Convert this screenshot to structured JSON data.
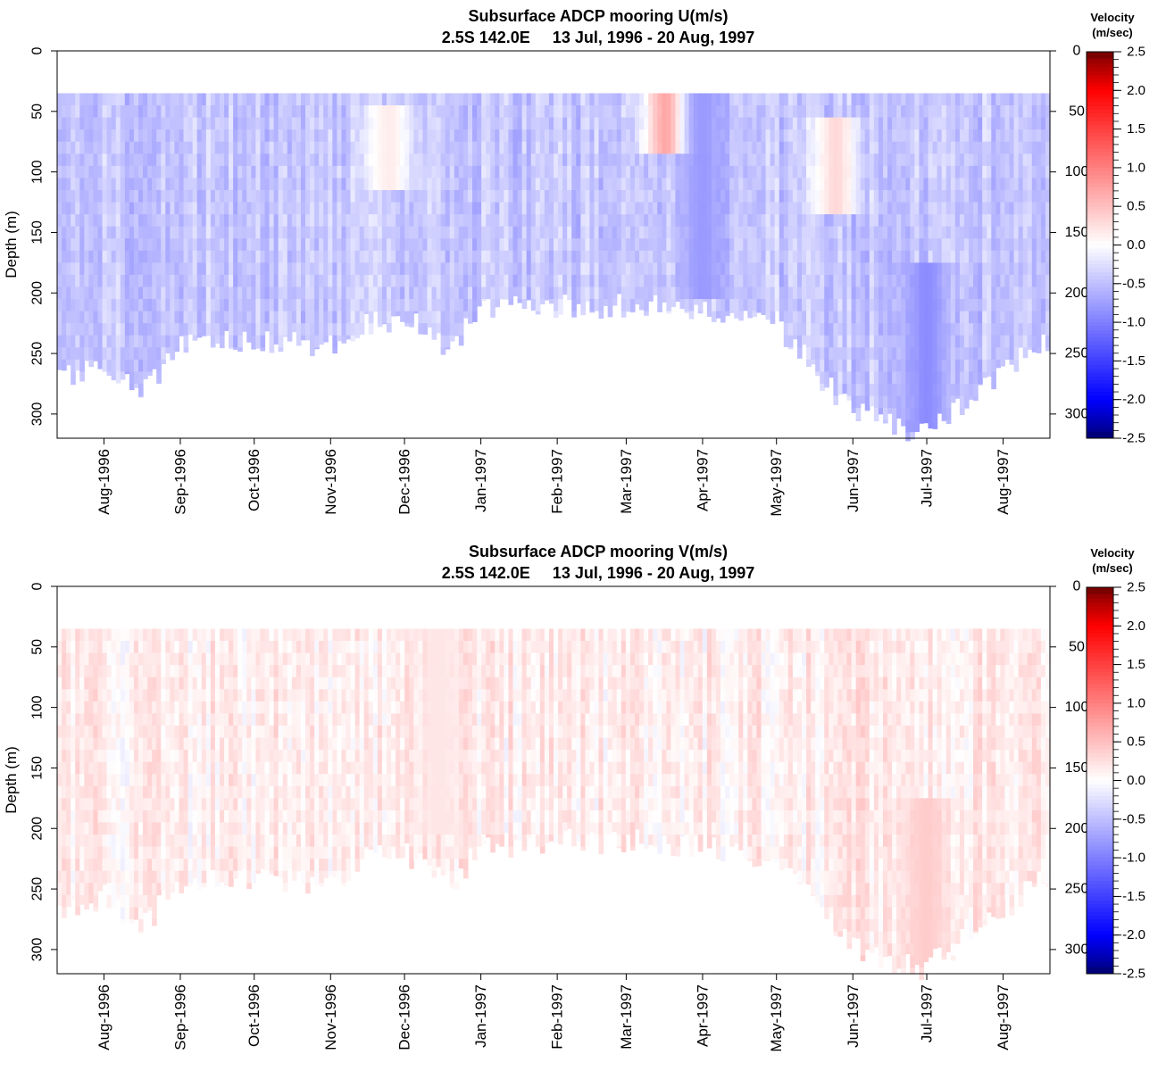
{
  "charts": [
    {
      "id": "u",
      "title": "Subsurface ADCP mooring U(m/s)",
      "subtitle": "2.5S 142.0E     13 Jul, 1996 - 20 Aug, 1997",
      "ylabel": "Depth (m)",
      "colorbar_title": [
        "Velocity",
        "(m/sec)"
      ]
    },
    {
      "id": "v",
      "title": "Subsurface ADCP mooring V(m/s)",
      "subtitle": "2.5S 142.0E     13 Jul, 1996 - 20 Aug, 1997",
      "ylabel": "Depth (m)",
      "colorbar_title": [
        "Velocity",
        "(m/sec)"
      ]
    }
  ],
  "chart_data": [
    {
      "type": "heatmap",
      "variable": "U",
      "title": "Subsurface ADCP mooring U(m/s)",
      "subtitle": "2.5S 142.0E     13 Jul, 1996 - 20 Aug, 1997",
      "ylabel": "Depth (m)",
      "ylim": [
        320,
        0
      ],
      "yticks": [
        0,
        50,
        100,
        150,
        200,
        250,
        300
      ],
      "xlim": [
        "1996-07-13",
        "1997-08-20"
      ],
      "xticks": [
        "1996-08-01",
        "1996-09-01",
        "1996-10-01",
        "1996-11-01",
        "1996-12-01",
        "1997-01-01",
        "1997-02-01",
        "1997-03-01",
        "1997-04-01",
        "1997-05-01",
        "1997-06-01",
        "1997-07-01",
        "1997-08-01"
      ],
      "xtick_labels": [
        "Aug-1996",
        "Sep-1996",
        "Oct-1996",
        "Nov-1996",
        "Dec-1996",
        "Jan-1997",
        "Feb-1997",
        "Mar-1997",
        "Apr-1997",
        "May-1997",
        "Jun-1997",
        "Jul-1997",
        "Aug-1997"
      ],
      "colorbar": {
        "title": "Velocity (m/sec)",
        "range": [
          -2.5,
          2.5
        ],
        "ticks": [
          2.5,
          2.0,
          1.5,
          1.0,
          0.5,
          0.0,
          -0.5,
          -1.0,
          -1.5,
          -2.0,
          -2.5
        ],
        "low_color": "#00007a",
        "mid_color": "#ffffff",
        "high_color": "#7a0000"
      },
      "data_top_depth": 35,
      "monthly_bottom_depth": [
        [
          "1996-07-13",
          275
        ],
        [
          "1996-08-01",
          255
        ],
        [
          "1996-08-15",
          285
        ],
        [
          "1996-09-01",
          245
        ],
        [
          "1996-10-01",
          240
        ],
        [
          "1996-11-01",
          245
        ],
        [
          "1996-11-15",
          225
        ],
        [
          "1996-12-01",
          220
        ],
        [
          "1996-12-20",
          245
        ],
        [
          "1997-01-01",
          215
        ],
        [
          "1997-02-01",
          210
        ],
        [
          "1997-03-01",
          210
        ],
        [
          "1997-04-01",
          215
        ],
        [
          "1997-05-01",
          225
        ],
        [
          "1997-06-01",
          300
        ],
        [
          "1997-07-01",
          315
        ],
        [
          "1997-08-01",
          265
        ],
        [
          "1997-08-20",
          240
        ]
      ],
      "features": [
        {
          "date": "1997-03-18",
          "depth_range": [
            35,
            75
          ],
          "value": 0.8
        },
        {
          "date": "1997-05-25",
          "depth_range": [
            60,
            130
          ],
          "value": 0.3
        },
        {
          "date": "1996-11-25",
          "depth_range": [
            50,
            110
          ],
          "value": 0.15
        },
        {
          "date": "1997-07-01",
          "depth_range": [
            180,
            310
          ],
          "value": -0.9
        },
        {
          "date": "1997-04-01",
          "depth_range": [
            35,
            200
          ],
          "value": -0.8
        }
      ],
      "typical_value": -0.45
    },
    {
      "type": "heatmap",
      "variable": "V",
      "title": "Subsurface ADCP mooring V(m/s)",
      "subtitle": "2.5S 142.0E     13 Jul, 1996 - 20 Aug, 1997",
      "ylabel": "Depth (m)",
      "ylim": [
        320,
        0
      ],
      "yticks": [
        0,
        50,
        100,
        150,
        200,
        250,
        300
      ],
      "xlim": [
        "1996-07-13",
        "1997-08-20"
      ],
      "xticks": [
        "1996-08-01",
        "1996-09-01",
        "1996-10-01",
        "1996-11-01",
        "1996-12-01",
        "1997-01-01",
        "1997-02-01",
        "1997-03-01",
        "1997-04-01",
        "1997-05-01",
        "1997-06-01",
        "1997-07-01",
        "1997-08-01"
      ],
      "xtick_labels": [
        "Aug-1996",
        "Sep-1996",
        "Oct-1996",
        "Nov-1996",
        "Dec-1996",
        "Jan-1997",
        "Feb-1997",
        "Mar-1997",
        "Apr-1997",
        "May-1997",
        "Jun-1997",
        "Jul-1997",
        "Aug-1997"
      ],
      "colorbar": {
        "title": "Velocity (m/sec)",
        "range": [
          -2.5,
          2.5
        ],
        "ticks": [
          2.5,
          2.0,
          1.5,
          1.0,
          0.5,
          0.0,
          -0.5,
          -1.0,
          -1.5,
          -2.0,
          -2.5
        ],
        "low_color": "#00007a",
        "mid_color": "#ffffff",
        "high_color": "#7a0000"
      },
      "data_top_depth": 35,
      "monthly_bottom_depth": [
        [
          "1996-07-13",
          275
        ],
        [
          "1996-08-01",
          255
        ],
        [
          "1996-08-15",
          285
        ],
        [
          "1996-09-01",
          245
        ],
        [
          "1996-10-01",
          240
        ],
        [
          "1996-11-01",
          245
        ],
        [
          "1996-11-15",
          225
        ],
        [
          "1996-12-01",
          220
        ],
        [
          "1996-12-20",
          245
        ],
        [
          "1997-01-01",
          215
        ],
        [
          "1997-02-01",
          210
        ],
        [
          "1997-03-01",
          210
        ],
        [
          "1997-04-01",
          215
        ],
        [
          "1997-05-01",
          225
        ],
        [
          "1997-06-01",
          300
        ],
        [
          "1997-07-01",
          315
        ],
        [
          "1997-08-01",
          265
        ],
        [
          "1997-08-20",
          240
        ]
      ],
      "features": [
        {
          "date": "1997-07-01",
          "depth_range": [
            180,
            310
          ],
          "value": 0.4
        },
        {
          "date": "1996-12-15",
          "depth_range": [
            40,
            200
          ],
          "value": 0.2
        }
      ],
      "typical_value": 0.15
    }
  ]
}
